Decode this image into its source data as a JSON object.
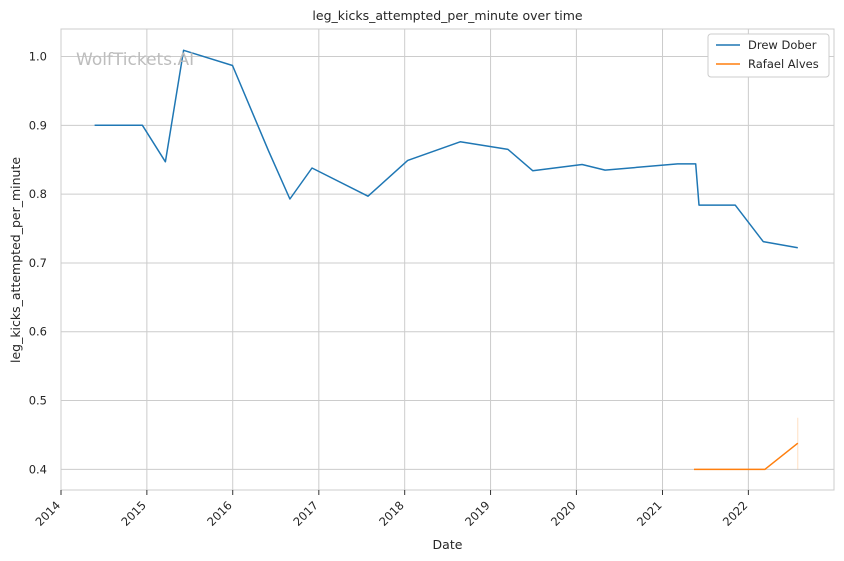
{
  "chart_data": {
    "type": "line",
    "title": "leg_kicks_attempted_per_minute over time",
    "xlabel": "Date",
    "ylabel": "leg_kicks_attempted_per_minute",
    "watermark": "WolfTickets.AI",
    "x_ticks": [
      "2014",
      "2015",
      "2016",
      "2017",
      "2018",
      "2019",
      "2020",
      "2021",
      "2022"
    ],
    "y_ticks": [
      "0.4",
      "0.5",
      "0.6",
      "0.7",
      "0.8",
      "0.9",
      "1.0"
    ],
    "xlim": [
      "2014-01-01",
      "2022-12-31"
    ],
    "ylim": [
      0.37,
      1.04
    ],
    "grid": true,
    "legend_position": "top-right",
    "series": [
      {
        "name": "Drew Dober",
        "color": "#1f77b4",
        "points": [
          [
            "2014-05-24",
            0.9
          ],
          [
            "2014-12-13",
            0.9
          ],
          [
            "2015-03-21",
            0.847
          ],
          [
            "2015-06-06",
            1.009
          ],
          [
            "2015-12-31",
            0.987
          ],
          [
            "2016-06-01",
            0.863
          ],
          [
            "2016-08-31",
            0.793
          ],
          [
            "2016-12-03",
            0.838
          ],
          [
            "2017-07-29",
            0.797
          ],
          [
            "2018-01-14",
            0.849
          ],
          [
            "2018-08-25",
            0.876
          ],
          [
            "2019-03-16",
            0.865
          ],
          [
            "2019-06-29",
            0.834
          ],
          [
            "2020-01-25",
            0.843
          ],
          [
            "2020-05-02",
            0.835
          ],
          [
            "2021-03-06",
            0.844
          ],
          [
            "2021-05-22",
            0.844
          ],
          [
            "2021-06-05",
            0.784
          ],
          [
            "2021-11-06",
            0.784
          ],
          [
            "2022-03-05",
            0.731
          ],
          [
            "2022-07-30",
            0.722
          ]
        ]
      },
      {
        "name": "Rafael Alves",
        "color": "#ff7f0e",
        "points": [
          [
            "2021-05-15",
            0.4
          ],
          [
            "2021-11-13",
            0.4
          ],
          [
            "2022-03-12",
            0.4
          ],
          [
            "2022-07-30",
            0.438
          ]
        ]
      }
    ]
  }
}
